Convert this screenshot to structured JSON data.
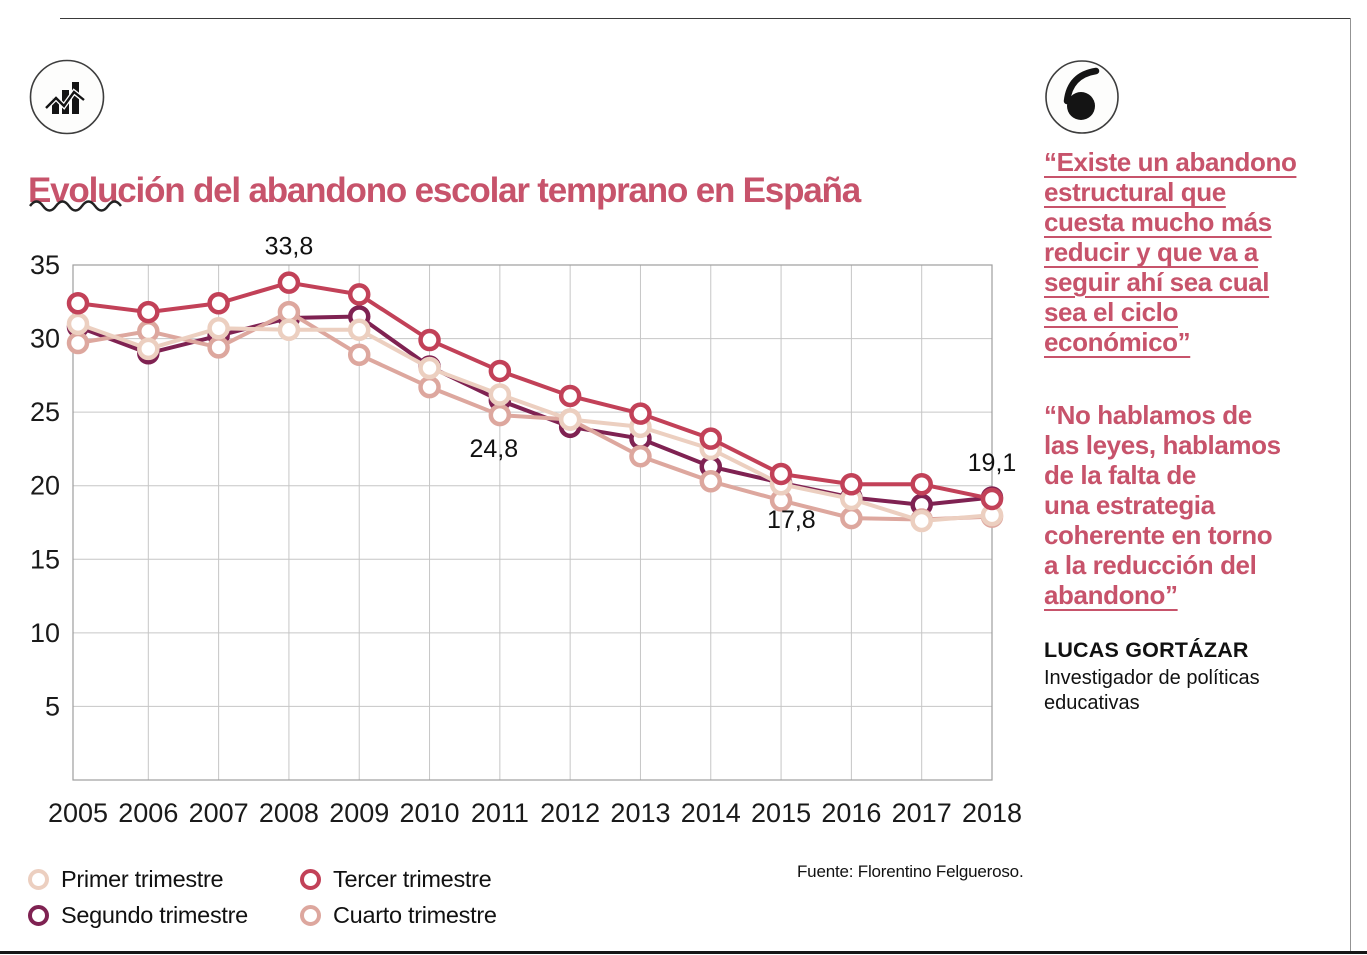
{
  "header": {
    "title": "Evolución del abandono escolar temprano en España",
    "chart_icon": "bar-chart-icon",
    "quote_icon": "quote-mark-icon"
  },
  "chart": {
    "y_ticks": [
      35,
      30,
      25,
      20,
      15,
      10,
      5
    ]
  },
  "chart_data": {
    "type": "line",
    "title": "Evolución del abandono escolar temprano en España",
    "categories": [
      "2005",
      "2006",
      "2007",
      "2008",
      "2009",
      "2010",
      "2011",
      "2012",
      "2013",
      "2014",
      "2015",
      "2016",
      "2017",
      "2018"
    ],
    "ylim": [
      0,
      35
    ],
    "grid": true,
    "legend_position": "bottom",
    "series": [
      {
        "name": "Primer trimestre",
        "color": "#eccfc0",
        "values": [
          31.0,
          29.3,
          30.7,
          30.6,
          30.6,
          28.0,
          26.2,
          24.5,
          24.0,
          22.5,
          20.1,
          19.1,
          17.6,
          18.0
        ]
      },
      {
        "name": "Segundo trimestre",
        "color": "#7f2252",
        "values": [
          30.8,
          29.0,
          30.2,
          31.4,
          31.5,
          28.1,
          25.8,
          24.0,
          23.2,
          21.3,
          20.2,
          19.2,
          18.7,
          19.2
        ]
      },
      {
        "name": "Tercer trimestre",
        "color": "#c24158",
        "values": [
          32.4,
          31.8,
          32.4,
          33.8,
          33.0,
          29.9,
          27.8,
          26.1,
          24.9,
          23.2,
          20.8,
          20.1,
          20.1,
          19.1
        ]
      },
      {
        "name": "Cuarto trimestre",
        "color": "#dda79e",
        "values": [
          29.7,
          30.5,
          29.4,
          31.8,
          28.9,
          26.7,
          24.8,
          24.5,
          22.0,
          20.3,
          19.0,
          17.8,
          17.7,
          17.9
        ]
      }
    ],
    "annotations": [
      {
        "text": "33,8",
        "series": "Tercer trimestre",
        "year": "2008",
        "value": 33.8,
        "placement": "above"
      },
      {
        "text": "24,8",
        "series": "Cuarto trimestre",
        "year": "2011",
        "value": 24.8,
        "placement": "below"
      },
      {
        "text": "17,8",
        "series": "Cuarto trimestre",
        "year": "2016",
        "value": 17.8,
        "placement": "left"
      },
      {
        "text": "19,1",
        "series": "Tercer trimestre",
        "year": "2018",
        "value": 19.1,
        "placement": "above"
      }
    ]
  },
  "legend": {
    "items": [
      "Primer trimestre",
      "Segundo trimestre",
      "Tercer trimestre",
      "Cuarto trimestre"
    ]
  },
  "source": "Fuente: Florentino Felgueroso.",
  "sidebar": {
    "quote1": "“Existe un abandono\nestructural que\ncuesta mucho más\nreducir y que va a\nseguir ahí sea cual\nsea el ciclo\neconómico”",
    "quote2_main": "“No hablamos de\nlas leyes, hablamos\nde la falta de\nuna estrategia\ncoherente en torno\na la reducción del\n",
    "quote2_underlined": "abandono”",
    "author_name": "LUCAS GORTÁZAR",
    "author_role": "Investigador de políticas\neducativas"
  }
}
